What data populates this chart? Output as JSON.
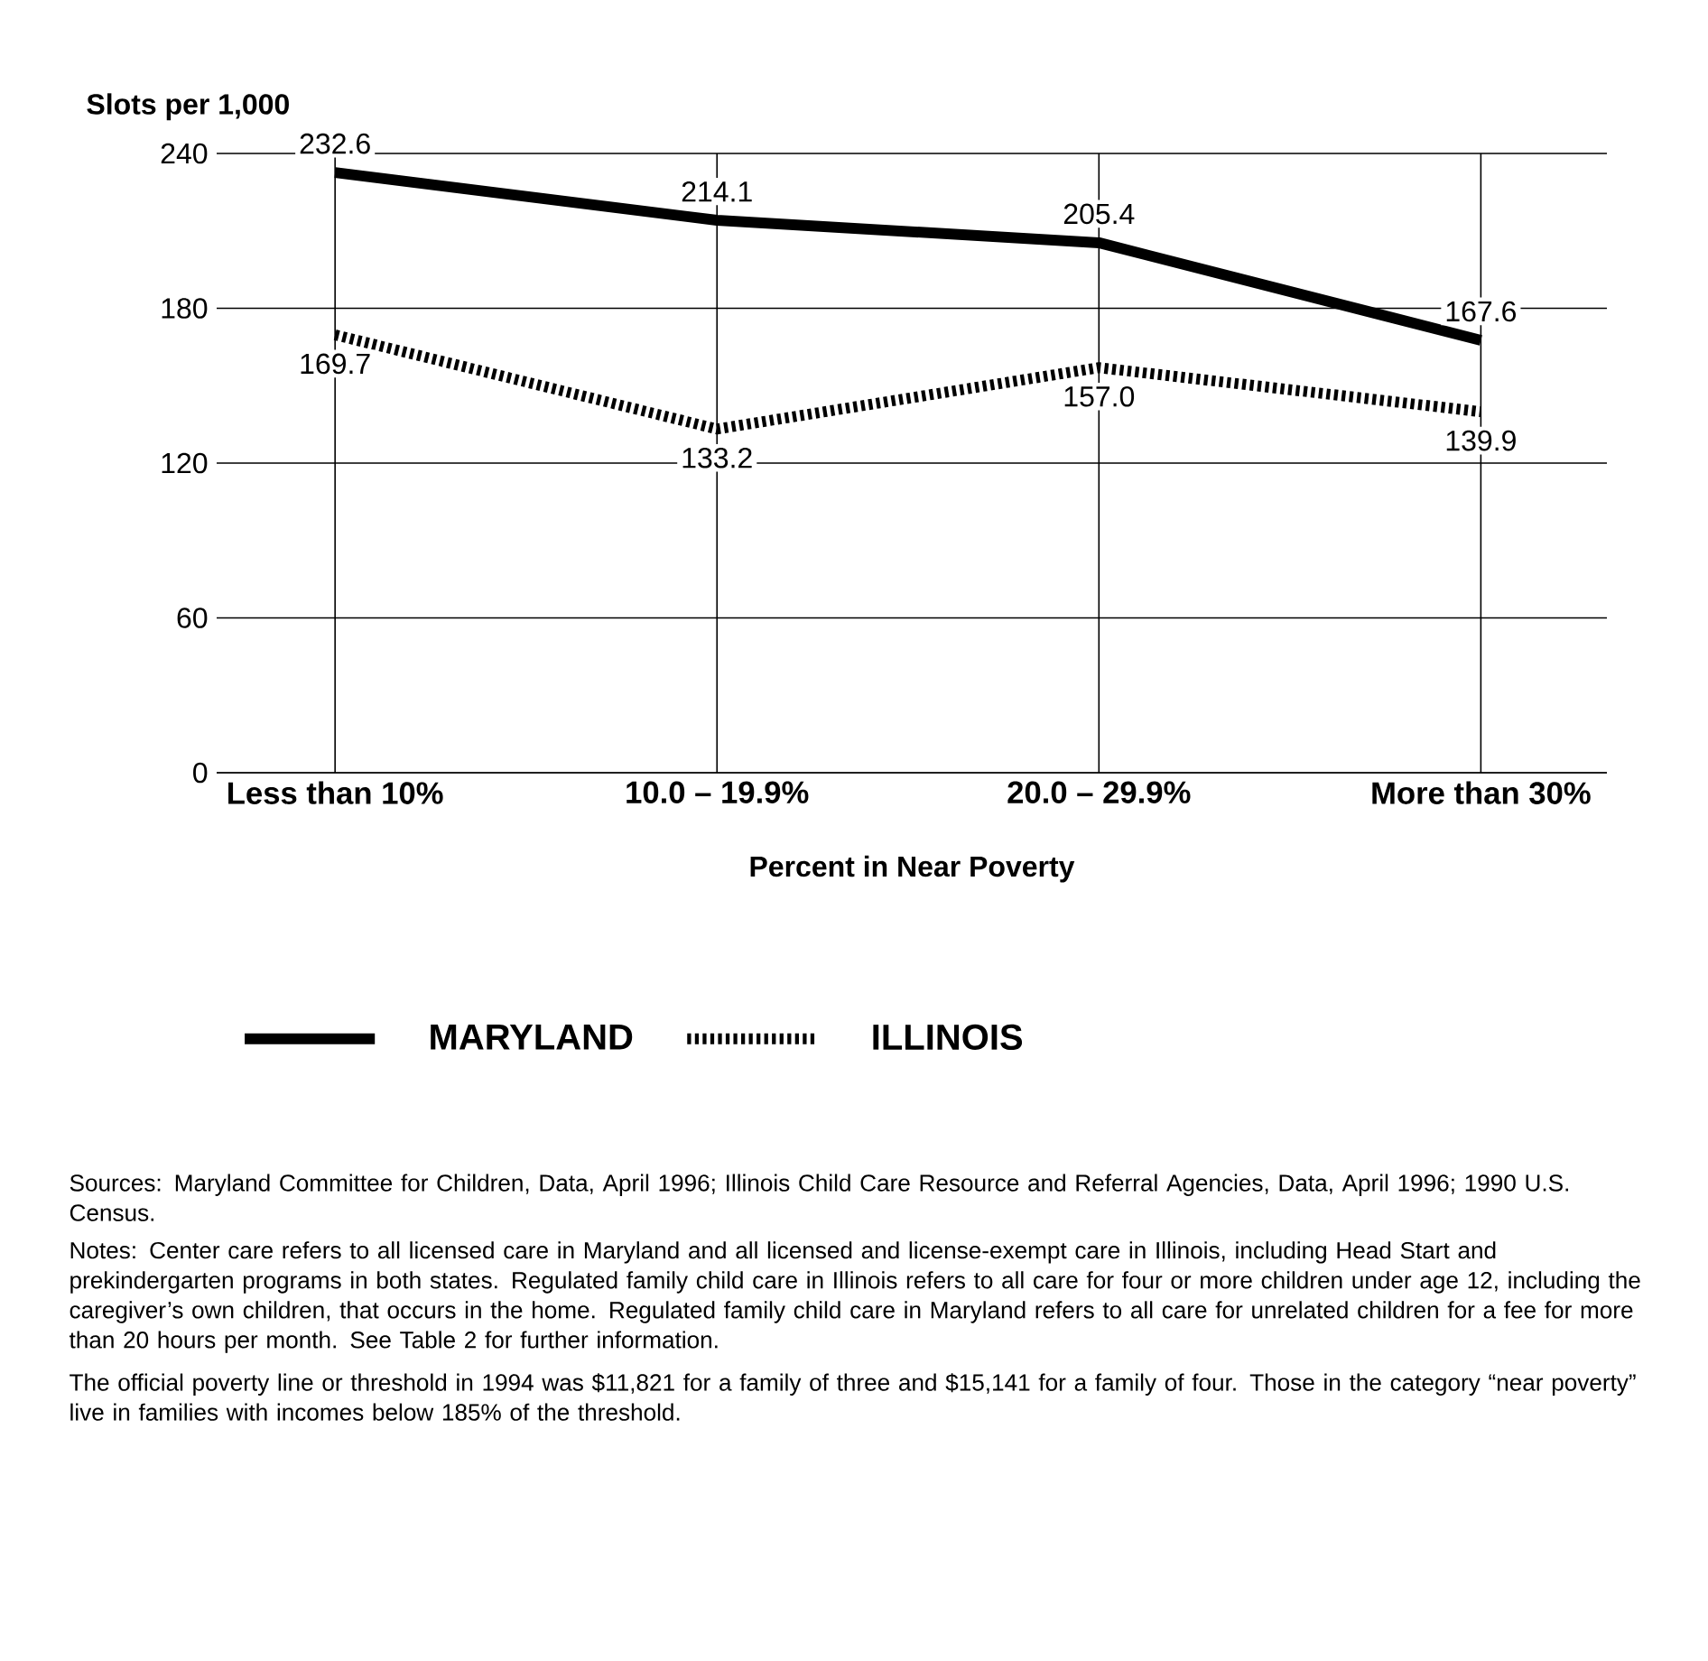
{
  "chart_data": {
    "type": "line",
    "ylabel": "Slots per 1,000",
    "xlabel": "Percent in Near Poverty",
    "categories": [
      "Less than 10%",
      "10.0 – 19.9%",
      "20.0 – 29.9%",
      "More than 30%"
    ],
    "ylim": [
      0,
      240
    ],
    "yticks": [
      0,
      60,
      120,
      180,
      240
    ],
    "grid": true,
    "legend": "bottom",
    "series": [
      {
        "name": "MARYLAND",
        "color": "#000000",
        "line_style": "solid",
        "values": [
          232.6,
          214.1,
          205.4,
          167.6
        ],
        "value_labels": [
          "232.6",
          "214.1",
          "205.4",
          "167.6"
        ]
      },
      {
        "name": "ILLINOIS",
        "color": "#000000",
        "line_style": "dotted",
        "values": [
          169.7,
          133.2,
          157.0,
          139.9
        ],
        "value_labels": [
          "169.7",
          "133.2",
          "157.0",
          "139.9"
        ]
      }
    ],
    "annotations": [
      "Sources: Maryland Committee for Children, Data, April 1996; Illinois Child Care Resource and Referral Agencies, Data, April 1996; 1990 U.S. Census.",
      "Notes: Center care refers to all licensed care in Maryland and all licensed and license-exempt care in Illinois, including Head Start and prekindergarten programs in both states. Regulated family child care in Illinois refers to all care for four or more children under age 12, including the caregiver’s own children, that occurs in the home. Regulated family child care in Maryland refers to all care for unrelated children for a fee for more than 20 hours per month. See Table 2 for further information.",
      "The official poverty line or threshold in 1994 was $11,821 for a family of three and $15,141 for a family of four. Those in the category “near poverty” live in families with incomes below 185% of the threshold."
    ]
  }
}
